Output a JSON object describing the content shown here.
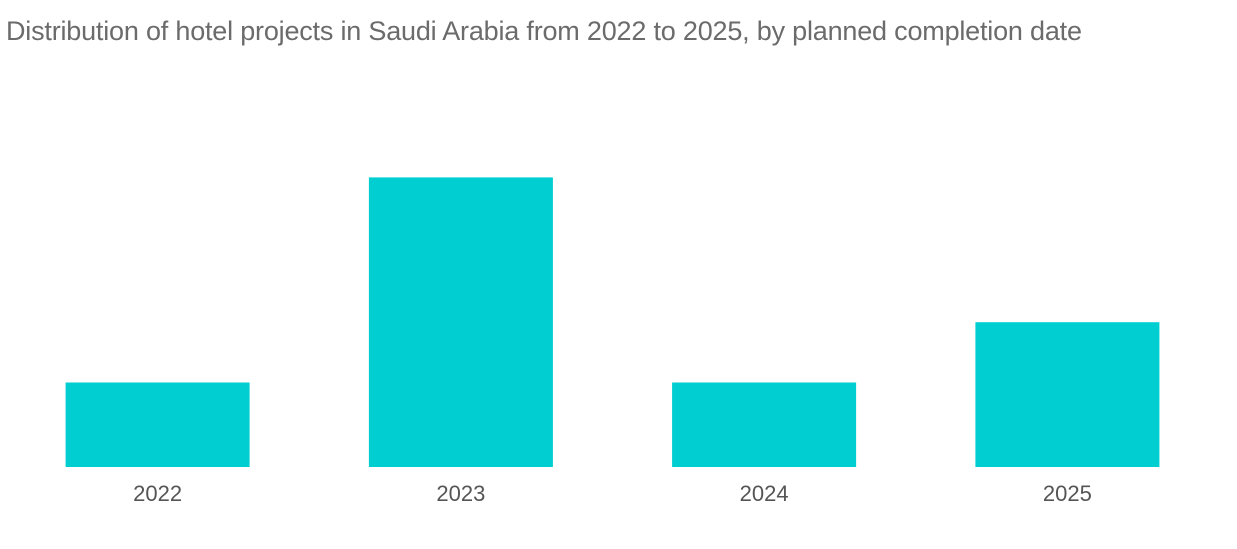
{
  "chart_data": {
    "type": "bar",
    "title": "Distribution of hotel projects in Saudi Arabia from 2022 to 2025, by planned completion date",
    "categories": [
      "2022",
      "2023",
      "2024",
      "2025"
    ],
    "values": [
      14,
      48,
      14,
      24
    ],
    "xlabel": "",
    "ylabel": "",
    "ylim": [
      0,
      60
    ],
    "grid": false,
    "bar_color": "#00ced1"
  }
}
